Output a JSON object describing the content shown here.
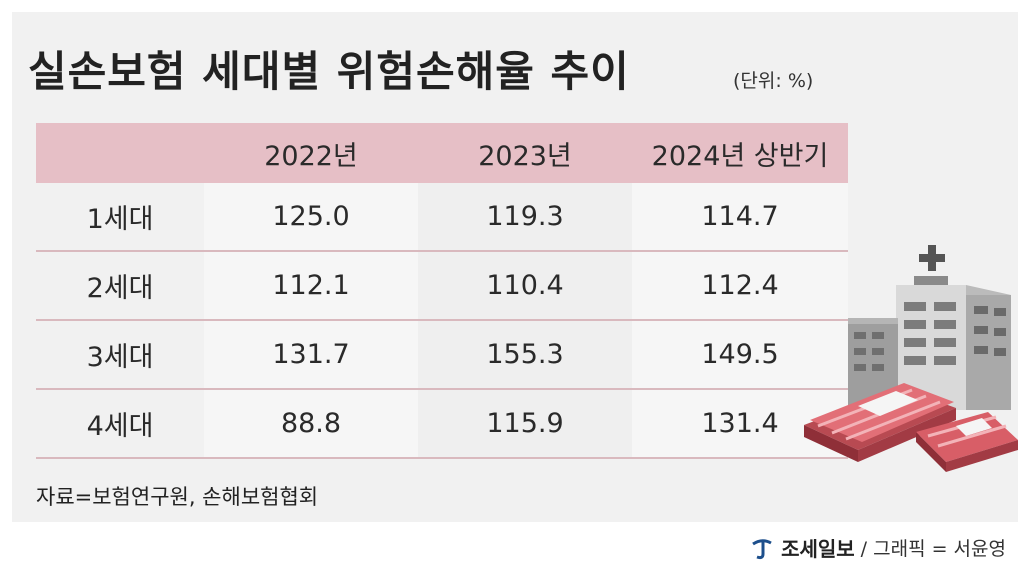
{
  "title": "실손보험 세대별 위험손해율 추이",
  "unit": "(단위: %)",
  "source": "자료=보험연구원, 손해보험협회",
  "credit": {
    "brand": "조세일보",
    "text": "/ 그래픽 = 서윤영"
  },
  "colors": {
    "header_bg": "#e6bfc6",
    "row_divider": "#d9b9be",
    "panel_bg": "#f1f1f1"
  },
  "icons": [
    "hospital-building-icon",
    "money-bundle-icon",
    "joseilbo-logo-icon"
  ],
  "chart_data": {
    "type": "table",
    "title": "실손보험 세대별 위험손해율 추이",
    "unit": "(단위: %)",
    "columns": [
      "",
      "2022년",
      "2023년",
      "2024년 상반기"
    ],
    "rows": [
      {
        "label": "1세대",
        "values": [
          "125.0",
          "119.3",
          "114.7"
        ]
      },
      {
        "label": "2세대",
        "values": [
          "112.1",
          "110.4",
          "112.4"
        ]
      },
      {
        "label": "3세대",
        "values": [
          "131.7",
          "155.3",
          "149.5"
        ]
      },
      {
        "label": "4세대",
        "values": [
          "88.8",
          "115.9",
          "131.4"
        ]
      }
    ]
  }
}
